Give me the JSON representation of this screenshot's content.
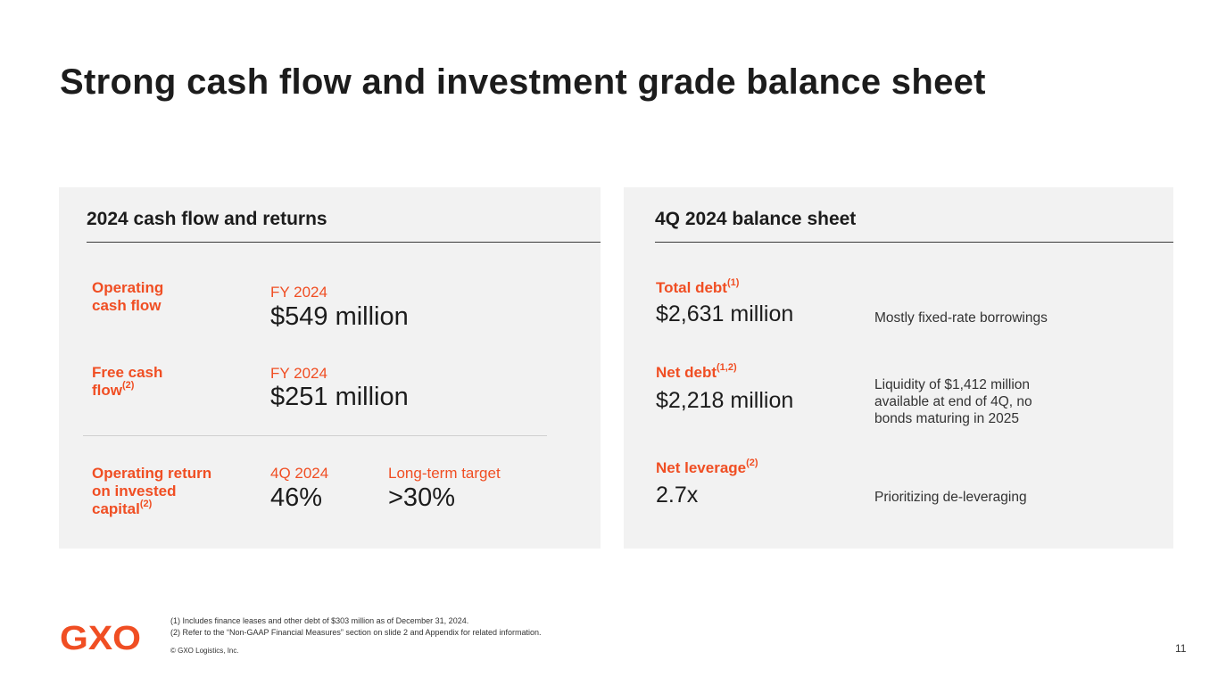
{
  "slide": {
    "title": "Strong cash flow and investment grade balance sheet",
    "page_number": "11",
    "accent_color": "#f04e23"
  },
  "left_panel": {
    "heading": "2024 cash flow and returns",
    "rows": [
      {
        "label_lines": [
          "Operating",
          "cash flow"
        ],
        "period": "FY 2024",
        "value": "$549 million"
      },
      {
        "label_lines": [
          "Free cash",
          "flow"
        ],
        "label_sup": "(2)",
        "period": "FY 2024",
        "value": "$251 million"
      },
      {
        "label_lines": [
          "Operating return",
          "on invested",
          "capital"
        ],
        "label_sup": "(2)",
        "period": "4Q 2024",
        "value": "46%",
        "target_label": "Long-term target",
        "target_value": ">30%"
      }
    ]
  },
  "right_panel": {
    "heading": "4Q 2024 balance sheet",
    "rows": [
      {
        "label": "Total debt",
        "label_sup": "(1)",
        "value": "$2,631 million",
        "note": "Mostly fixed-rate borrowings"
      },
      {
        "label": "Net debt",
        "label_sup": "(1,2)",
        "value": "$2,218 million",
        "note_lines": [
          "Liquidity of $1,412 million",
          "available at end of 4Q, no",
          "bonds maturing in 2025"
        ]
      },
      {
        "label": "Net leverage",
        "label_sup": "(2)",
        "value": "2.7x",
        "note": "Prioritizing de-leveraging"
      }
    ]
  },
  "footer": {
    "logo_text": "GXO",
    "footnote_1": "(1) Includes  finance  leases  and  other debt of $303 million  as of December   31, 2024.",
    "footnote_2": "(2)  Refer  to the  “Non-GAAP   Financial  Measures”  section  on slide  2 and Appendix   for related  information.",
    "copyright": "© GXO Logistics, Inc."
  }
}
